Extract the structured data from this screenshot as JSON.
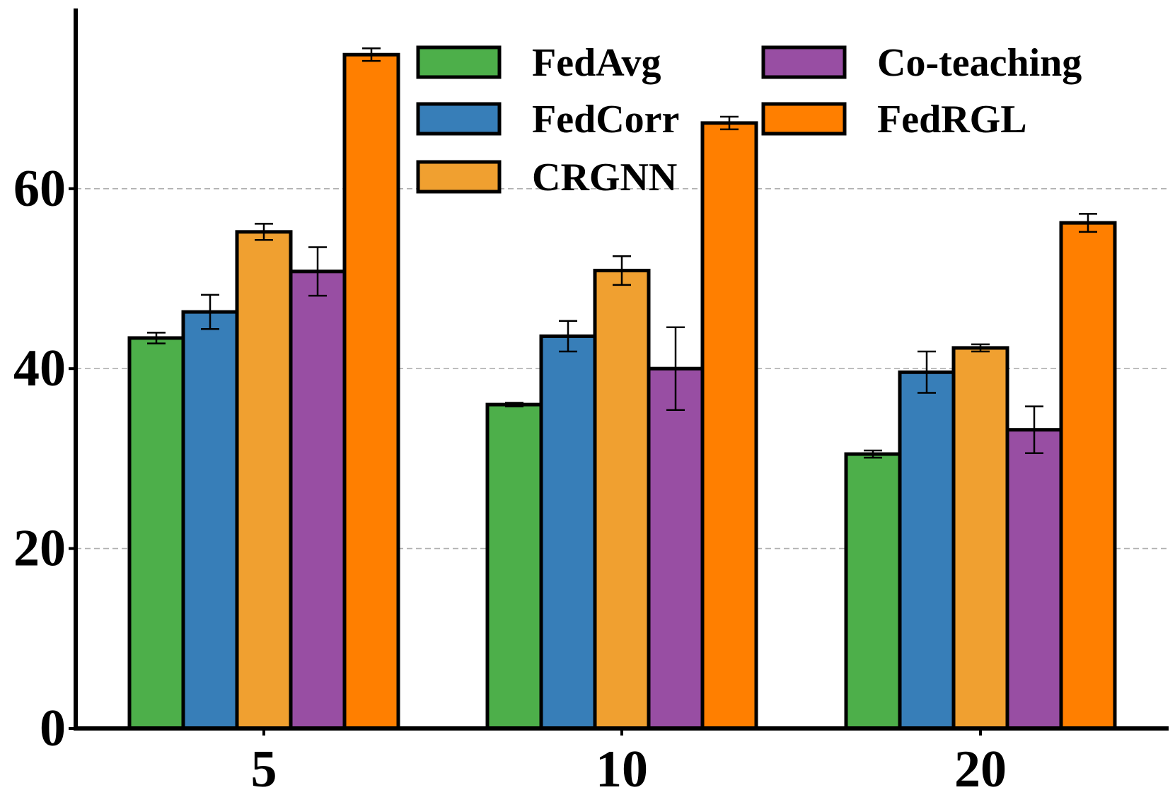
{
  "chart_data": {
    "type": "bar",
    "title": "",
    "xlabel": "",
    "ylabel": "",
    "categories": [
      "5",
      "10",
      "20"
    ],
    "ylim": [
      0,
      80
    ],
    "yticks": [
      "0",
      "20",
      "40",
      "60"
    ],
    "ytick_values": [
      0,
      20,
      40,
      60
    ],
    "grid": true,
    "legend_position": "top",
    "series": [
      {
        "name": "FedAvg",
        "color": "#4daf4a",
        "values": [
          43.4,
          36.0,
          30.5
        ],
        "errors": [
          0.6,
          0.2,
          0.4
        ]
      },
      {
        "name": "FedCorr",
        "color": "#377eb8",
        "values": [
          46.3,
          43.6,
          39.6
        ],
        "errors": [
          1.9,
          1.7,
          2.3
        ]
      },
      {
        "name": "CRGNN",
        "color": "#f0a030",
        "values": [
          55.2,
          50.9,
          42.3
        ],
        "errors": [
          0.9,
          1.6,
          0.4
        ]
      },
      {
        "name": "Co-teaching",
        "color": "#984ea3",
        "values": [
          50.8,
          40.0,
          33.2
        ],
        "errors": [
          2.7,
          4.6,
          2.6
        ]
      },
      {
        "name": "FedRGL",
        "color": "#ff7f00",
        "values": [
          74.9,
          67.3,
          56.2
        ],
        "errors": [
          0.7,
          0.7,
          1.0
        ]
      }
    ]
  }
}
